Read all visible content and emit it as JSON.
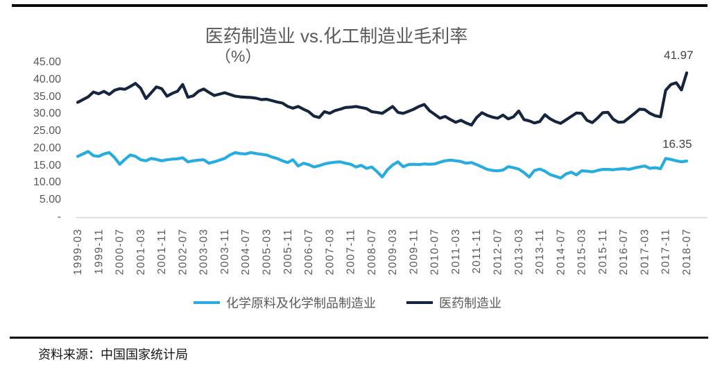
{
  "header": {
    "title": "医药制造业 vs.化工制造业毛利率",
    "subtitle": "（%）"
  },
  "footer": {
    "source": "资料来源：中国国家统计局"
  },
  "legend": {
    "position": "bottom",
    "items": [
      {
        "label": "化学原料及化学制品制造业",
        "color": "#27ace0"
      },
      {
        "label": "医药制造业",
        "color": "#16253e"
      }
    ]
  },
  "chart_data": {
    "type": "line",
    "title": "医药制造业 vs.化工制造业毛利率（%）",
    "xlabel": "",
    "ylabel": "毛利率（%）",
    "x_start": "1999-03",
    "x_step_months": 2,
    "x_tick_labels": [
      "1999-03",
      "1999-11",
      "2000-07",
      "2001-03",
      "2001-11",
      "2002-07",
      "2003-03",
      "2003-11",
      "2004-07",
      "2005-03",
      "2005-11",
      "2006-07",
      "2007-03",
      "2007-11",
      "2008-07",
      "2009-03",
      "2009-11",
      "2010-07",
      "2011-03",
      "2011-11",
      "2012-07",
      "2013-03",
      "2013-11",
      "2014-07",
      "2015-03",
      "2015-11",
      "2016-07",
      "2017-03",
      "2017-11",
      "2018-07"
    ],
    "ylim": [
      0,
      45
    ],
    "y_ticks": [
      {
        "value": 45,
        "label": "45.00"
      },
      {
        "value": 40,
        "label": "40.00"
      },
      {
        "value": 35,
        "label": "35.00"
      },
      {
        "value": 30,
        "label": "30.00"
      },
      {
        "value": 25,
        "label": "25.00"
      },
      {
        "value": 20,
        "label": "20.00"
      },
      {
        "value": 15,
        "label": "15.00"
      },
      {
        "value": 10,
        "label": "10.00"
      },
      {
        "value": 5,
        "label": "5.00"
      },
      {
        "value": 0,
        "label": "-"
      }
    ],
    "grid": false,
    "legend_position": "bottom",
    "end_labels": [
      {
        "series": "医药制造业",
        "value": "41.97"
      },
      {
        "series": "化学原料及化学制品制造业",
        "value": "16.35"
      }
    ],
    "series": [
      {
        "name": "化学原料及化学制品制造业",
        "color": "#27ace0",
        "values": [
          17.7,
          18.4,
          19.1,
          17.9,
          17.7,
          18.4,
          18.8,
          17.4,
          15.4,
          16.8,
          18.1,
          17.7,
          16.7,
          16.4,
          17.1,
          16.8,
          16.4,
          16.7,
          16.9,
          17.0,
          17.3,
          16.1,
          16.4,
          16.6,
          16.7,
          15.7,
          16.1,
          16.6,
          17.1,
          18.1,
          18.8,
          18.5,
          18.4,
          18.8,
          18.5,
          18.3,
          18.1,
          17.5,
          17.1,
          16.4,
          15.9,
          16.7,
          14.9,
          15.7,
          15.3,
          14.6,
          15.0,
          15.5,
          15.8,
          16.0,
          16.1,
          15.7,
          15.4,
          14.6,
          15.1,
          14.2,
          14.6,
          13.3,
          11.7,
          13.8,
          15.2,
          16.1,
          14.7,
          15.3,
          15.4,
          15.3,
          15.5,
          15.4,
          15.5,
          16.0,
          16.4,
          16.6,
          16.4,
          16.2,
          15.7,
          15.9,
          15.3,
          14.6,
          13.9,
          13.6,
          13.5,
          13.7,
          14.7,
          14.4,
          14.0,
          13.0,
          11.7,
          13.6,
          14.0,
          13.4,
          12.4,
          11.9,
          11.4,
          12.6,
          13.1,
          12.3,
          13.5,
          13.4,
          13.2,
          13.6,
          13.9,
          13.9,
          13.8,
          14.0,
          14.1,
          13.9,
          14.3,
          14.6,
          14.9,
          14.2,
          14.4,
          14.1,
          17.1,
          16.8,
          16.4,
          16.1,
          16.35
        ]
      },
      {
        "name": "医药制造业",
        "color": "#16253e",
        "values": [
          33.4,
          34.2,
          35.0,
          36.4,
          35.9,
          36.6,
          35.7,
          36.9,
          37.4,
          37.2,
          38.0,
          38.9,
          37.5,
          34.5,
          36.2,
          37.9,
          37.4,
          35.2,
          36.0,
          36.6,
          38.6,
          34.9,
          35.3,
          36.6,
          37.3,
          36.3,
          35.4,
          35.8,
          36.2,
          35.7,
          35.2,
          35.0,
          34.9,
          34.8,
          34.6,
          34.2,
          34.3,
          33.9,
          33.5,
          33.2,
          32.2,
          31.7,
          32.2,
          31.4,
          30.7,
          29.4,
          29.0,
          30.7,
          30.2,
          31.0,
          31.4,
          31.9,
          32.0,
          32.2,
          31.9,
          31.6,
          30.7,
          30.5,
          30.2,
          31.2,
          32.2,
          30.5,
          30.2,
          30.8,
          31.4,
          32.2,
          32.8,
          31.0,
          29.9,
          28.8,
          29.3,
          28.4,
          27.6,
          28.2,
          27.4,
          26.8,
          29.0,
          30.4,
          29.6,
          29.1,
          28.8,
          29.7,
          28.6,
          29.2,
          30.9,
          28.4,
          28.0,
          27.4,
          27.8,
          29.8,
          28.6,
          27.8,
          27.3,
          28.3,
          29.3,
          30.3,
          30.2,
          28.2,
          27.5,
          28.8,
          30.4,
          30.5,
          28.5,
          27.6,
          27.7,
          28.9,
          30.1,
          31.4,
          31.3,
          30.2,
          29.5,
          29.2,
          36.9,
          38.6,
          39.1,
          37.0,
          41.97
        ]
      }
    ]
  }
}
